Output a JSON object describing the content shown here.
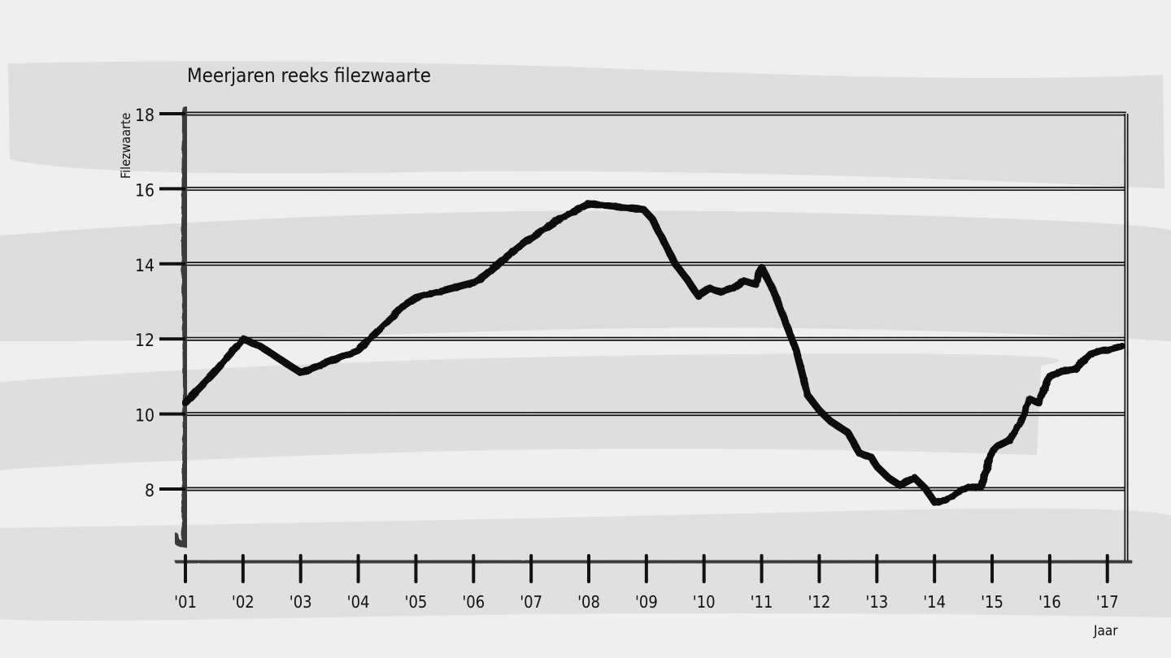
{
  "chart_data": {
    "type": "line",
    "title": "Meerjaren reeks filezwaarte",
    "xlabel": "Jaar",
    "ylabel": "Filezwaarte",
    "ylim": [
      6,
      18
    ],
    "yticks": [
      8,
      10,
      12,
      14,
      16,
      18
    ],
    "xticks": [
      "'01",
      "'02",
      "'03",
      "'04",
      "'05",
      "'06",
      "'07",
      "'08",
      "'09",
      "'10",
      "'11",
      "'12",
      "'13",
      "'14",
      "'15",
      "'16",
      "'17"
    ],
    "xlim": [
      2001,
      2017.3
    ],
    "grid": true,
    "legend": "none",
    "series": [
      {
        "color": "#111111",
        "x": [
          2001.0,
          2001.5,
          2002.0,
          2002.3,
          2002.6,
          2003.0,
          2003.5,
          2004.0,
          2004.4,
          2004.8,
          2005.0,
          2005.5,
          2006.0,
          2006.2,
          2006.5,
          2007.0,
          2007.5,
          2008.0,
          2008.3,
          2008.6,
          2008.95,
          2009.1,
          2009.3,
          2009.5,
          2009.7,
          2009.9,
          2010.1,
          2010.3,
          2010.5,
          2010.7,
          2010.9,
          2011.0,
          2011.2,
          2011.4,
          2011.6,
          2011.8,
          2012.0,
          2012.2,
          2012.5,
          2012.7,
          2012.9,
          2013.0,
          2013.2,
          2013.4,
          2013.65,
          2013.85,
          2014.0,
          2014.2,
          2014.4,
          2014.6,
          2014.8,
          2015.0,
          2015.1,
          2015.3,
          2015.5,
          2015.65,
          2015.8,
          2016.0,
          2016.2,
          2016.45,
          2016.7,
          2016.9,
          2017.0,
          2017.25
        ],
        "y": [
          10.3,
          11.1,
          12.0,
          11.8,
          11.5,
          11.1,
          11.4,
          11.7,
          12.3,
          12.9,
          13.1,
          13.3,
          13.5,
          13.7,
          14.1,
          14.7,
          15.2,
          15.6,
          15.55,
          15.5,
          15.45,
          15.2,
          14.6,
          14.0,
          13.6,
          13.15,
          13.35,
          13.25,
          13.35,
          13.55,
          13.45,
          13.9,
          13.3,
          12.5,
          11.7,
          10.5,
          10.1,
          9.8,
          9.5,
          8.95,
          8.85,
          8.6,
          8.3,
          8.1,
          8.3,
          8.0,
          7.65,
          7.7,
          7.9,
          8.05,
          8.05,
          9.0,
          9.15,
          9.3,
          9.8,
          10.4,
          10.3,
          11.0,
          11.15,
          11.2,
          11.6,
          11.7,
          11.7,
          11.8
        ]
      }
    ]
  }
}
